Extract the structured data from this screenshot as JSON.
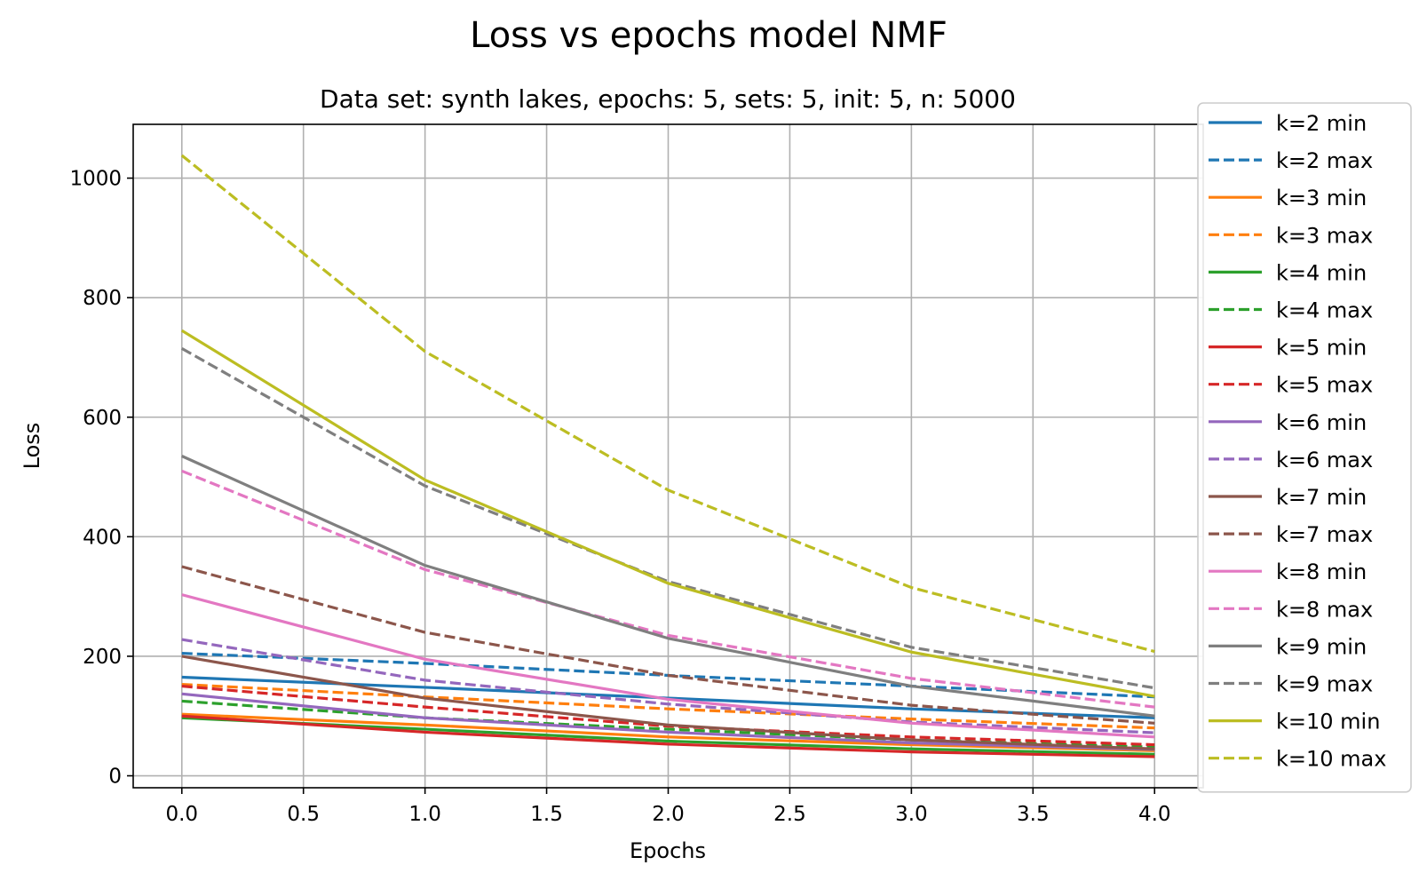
{
  "chart_data": {
    "type": "line",
    "title": "Loss vs epochs model NMF",
    "subtitle": "Data set:  synth lakes, epochs: 5, sets: 5, init: 5, n: 5000",
    "xlabel": "Epochs",
    "ylabel": "Loss",
    "xlim": [
      -0.2,
      4.2
    ],
    "ylim": [
      -20,
      1090
    ],
    "xticks": [
      "0.0",
      "0.5",
      "1.0",
      "1.5",
      "2.0",
      "2.5",
      "3.0",
      "3.5",
      "4.0"
    ],
    "xtick_values": [
      0,
      0.5,
      1,
      1.5,
      2,
      2.5,
      3,
      3.5,
      4
    ],
    "yticks": [
      "0",
      "200",
      "400",
      "600",
      "800",
      "1000"
    ],
    "ytick_values": [
      0,
      200,
      400,
      600,
      800,
      1000
    ],
    "grid": true,
    "legend_position": "right",
    "x": [
      0,
      1,
      2,
      3,
      4
    ],
    "series": [
      {
        "name": "k=2 min",
        "color": "#1f77b4",
        "dash": false,
        "values": [
          165,
          148,
          130,
          112,
          97
        ]
      },
      {
        "name": "k=2 max",
        "color": "#1f77b4",
        "dash": true,
        "values": [
          205,
          188,
          168,
          150,
          132
        ]
      },
      {
        "name": "k=3 min",
        "color": "#ff7f0e",
        "dash": false,
        "values": [
          103,
          85,
          65,
          52,
          42
        ]
      },
      {
        "name": "k=3 max",
        "color": "#ff7f0e",
        "dash": true,
        "values": [
          153,
          132,
          112,
          95,
          80
        ]
      },
      {
        "name": "k=4 min",
        "color": "#2ca02c",
        "dash": false,
        "values": [
          97,
          78,
          58,
          45,
          36
        ]
      },
      {
        "name": "k=4 max",
        "color": "#2ca02c",
        "dash": true,
        "values": [
          125,
          97,
          78,
          60,
          48
        ]
      },
      {
        "name": "k=5 min",
        "color": "#d62728",
        "dash": false,
        "values": [
          100,
          73,
          53,
          40,
          32
        ]
      },
      {
        "name": "k=5 max",
        "color": "#d62728",
        "dash": true,
        "values": [
          150,
          115,
          83,
          65,
          52
        ]
      },
      {
        "name": "k=6 min",
        "color": "#9467bd",
        "dash": false,
        "values": [
          137,
          97,
          73,
          55,
          44
        ]
      },
      {
        "name": "k=6 max",
        "color": "#9467bd",
        "dash": true,
        "values": [
          228,
          160,
          120,
          90,
          72
        ]
      },
      {
        "name": "k=7 min",
        "color": "#8c564b",
        "dash": false,
        "values": [
          200,
          130,
          85,
          60,
          45
        ]
      },
      {
        "name": "k=7 max",
        "color": "#8c564b",
        "dash": true,
        "values": [
          350,
          240,
          168,
          118,
          88
        ]
      },
      {
        "name": "k=8 min",
        "color": "#e377c2",
        "dash": false,
        "values": [
          303,
          195,
          128,
          88,
          65
        ]
      },
      {
        "name": "k=8 max",
        "color": "#e377c2",
        "dash": true,
        "values": [
          510,
          345,
          235,
          163,
          115
        ]
      },
      {
        "name": "k=9 min",
        "color": "#7f7f7f",
        "dash": false,
        "values": [
          535,
          352,
          230,
          150,
          100
        ]
      },
      {
        "name": "k=9 max",
        "color": "#7f7f7f",
        "dash": true,
        "values": [
          715,
          485,
          325,
          215,
          147
        ]
      },
      {
        "name": "k=10 min",
        "color": "#bcbd22",
        "dash": false,
        "values": [
          745,
          495,
          322,
          207,
          133
        ]
      },
      {
        "name": "k=10 max",
        "color": "#bcbd22",
        "dash": true,
        "values": [
          1038,
          710,
          478,
          315,
          208
        ]
      }
    ]
  }
}
